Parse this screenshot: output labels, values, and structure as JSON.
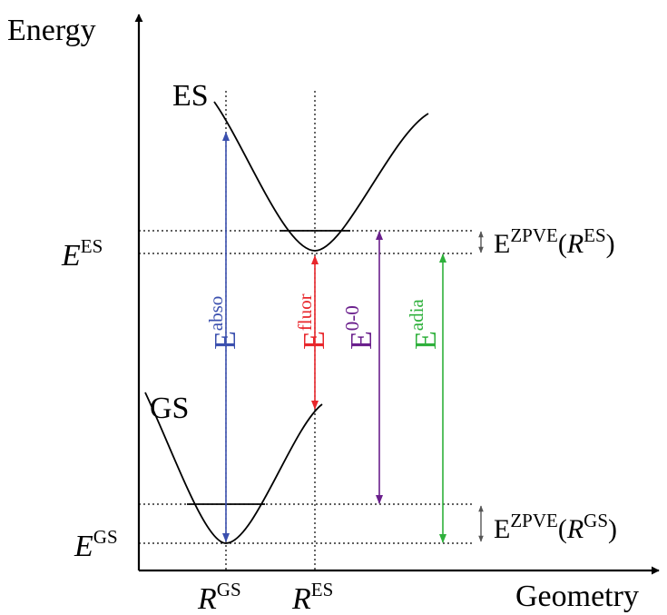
{
  "axes": {
    "y_label": "Energy",
    "x_label": "Geometry"
  },
  "curves": {
    "es_label": "ES",
    "gs_label": "GS"
  },
  "levels": {
    "e_es": {
      "base": "E",
      "sup": "ES"
    },
    "e_gs": {
      "base": "E",
      "sup": "GS"
    }
  },
  "geometries": {
    "r_gs": {
      "base": "R",
      "sup": "GS"
    },
    "r_es": {
      "base": "R",
      "sup": "ES"
    }
  },
  "transitions": {
    "abso": {
      "base": "E",
      "sup": "abso",
      "color": "#3a4fae"
    },
    "fluor": {
      "base": "E",
      "sup": "fluor",
      "color": "#e8262b"
    },
    "zero": {
      "base": "E",
      "sup": "0-0",
      "color": "#6a1f8c"
    },
    "adia": {
      "base": "E",
      "sup": "adia",
      "color": "#2eb03b"
    }
  },
  "zpve": {
    "es": {
      "base": "E",
      "sup": "ZPVE",
      "open": "(",
      "r": "R",
      "r_sup": "ES",
      "close": ")"
    },
    "gs": {
      "base": "E",
      "sup": "ZPVE",
      "open": "(",
      "r": "R",
      "r_sup": "GS",
      "close": ")"
    }
  }
}
